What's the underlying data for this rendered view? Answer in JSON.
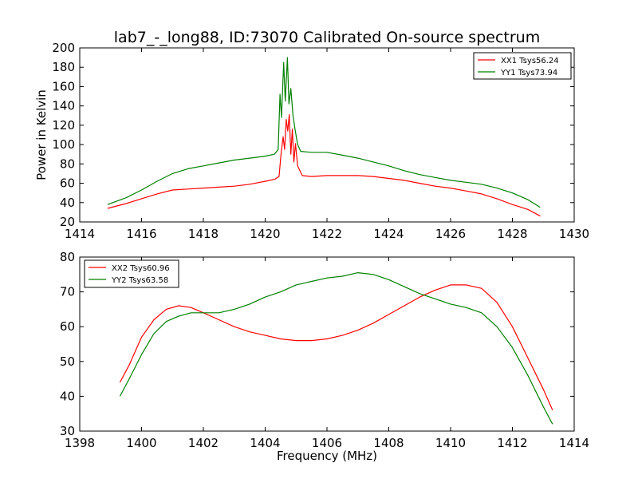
{
  "figure": {
    "title": "lab7_-_long88, ID:73070 Calibrated On-source spectrum",
    "ylabel": "Power in Kelvin",
    "xlabel": "Frequency (MHz)"
  },
  "chart_data": [
    {
      "type": "line",
      "xlim": [
        1414,
        1430
      ],
      "ylim": [
        20,
        200
      ],
      "xticks": [
        1414,
        1416,
        1418,
        1420,
        1422,
        1424,
        1426,
        1428,
        1430
      ],
      "yticks": [
        20,
        40,
        60,
        80,
        100,
        120,
        140,
        160,
        180,
        200
      ],
      "legend_position": "top-right",
      "series": [
        {
          "name": "XX1 Tsys56.24",
          "color": "#ff0000",
          "points": [
            [
              1414.9,
              34
            ],
            [
              1415.5,
              39
            ],
            [
              1416,
              44
            ],
            [
              1416.5,
              49
            ],
            [
              1417,
              53
            ],
            [
              1417.5,
              54
            ],
            [
              1418,
              55
            ],
            [
              1418.5,
              56
            ],
            [
              1419,
              57
            ],
            [
              1419.5,
              59
            ],
            [
              1420,
              62
            ],
            [
              1420.3,
              64
            ],
            [
              1420.45,
              67
            ],
            [
              1420.52,
              92
            ],
            [
              1420.58,
              108
            ],
            [
              1420.63,
              95
            ],
            [
              1420.68,
              126
            ],
            [
              1420.73,
              114
            ],
            [
              1420.78,
              131
            ],
            [
              1420.83,
              90
            ],
            [
              1420.88,
              116
            ],
            [
              1420.93,
              82
            ],
            [
              1420.98,
              101
            ],
            [
              1421.05,
              78
            ],
            [
              1421.2,
              68
            ],
            [
              1421.5,
              67
            ],
            [
              1422,
              68
            ],
            [
              1422.5,
              68
            ],
            [
              1423,
              68
            ],
            [
              1423.5,
              67
            ],
            [
              1424,
              65
            ],
            [
              1424.5,
              63
            ],
            [
              1425,
              60
            ],
            [
              1425.5,
              57
            ],
            [
              1426,
              55
            ],
            [
              1426.5,
              52
            ],
            [
              1427,
              49
            ],
            [
              1427.5,
              44
            ],
            [
              1428,
              38
            ],
            [
              1428.5,
              33
            ],
            [
              1428.9,
              26
            ]
          ]
        },
        {
          "name": "YY1 Tsys73.94",
          "color": "#008000",
          "points": [
            [
              1414.9,
              38
            ],
            [
              1415.5,
              45
            ],
            [
              1416,
              53
            ],
            [
              1416.5,
              62
            ],
            [
              1417,
              70
            ],
            [
              1417.5,
              75
            ],
            [
              1418,
              78
            ],
            [
              1418.5,
              81
            ],
            [
              1419,
              84
            ],
            [
              1419.5,
              86
            ],
            [
              1420,
              88
            ],
            [
              1420.3,
              90
            ],
            [
              1420.42,
              95
            ],
            [
              1420.48,
              152
            ],
            [
              1420.53,
              128
            ],
            [
              1420.6,
              185
            ],
            [
              1420.65,
              145
            ],
            [
              1420.72,
              190
            ],
            [
              1420.77,
              142
            ],
            [
              1420.83,
              158
            ],
            [
              1420.9,
              130
            ],
            [
              1420.97,
              115
            ],
            [
              1421.05,
              100
            ],
            [
              1421.15,
              93
            ],
            [
              1421.5,
              92
            ],
            [
              1422,
              92
            ],
            [
              1422.5,
              89
            ],
            [
              1423,
              86
            ],
            [
              1423.5,
              82
            ],
            [
              1424,
              78
            ],
            [
              1424.5,
              73
            ],
            [
              1425,
              69
            ],
            [
              1425.5,
              66
            ],
            [
              1426,
              63
            ],
            [
              1426.5,
              61
            ],
            [
              1427,
              59
            ],
            [
              1427.5,
              55
            ],
            [
              1428,
              50
            ],
            [
              1428.5,
              43
            ],
            [
              1428.9,
              35
            ]
          ]
        }
      ]
    },
    {
      "type": "line",
      "xlim": [
        1398,
        1414
      ],
      "ylim": [
        30,
        80
      ],
      "xticks": [
        1398,
        1400,
        1402,
        1404,
        1406,
        1408,
        1410,
        1412,
        1414
      ],
      "yticks": [
        30,
        40,
        50,
        60,
        70,
        80
      ],
      "legend_position": "top-left",
      "series": [
        {
          "name": "XX2 Tsys60.96",
          "color": "#ff0000",
          "points": [
            [
              1399.3,
              44
            ],
            [
              1399.6,
              49
            ],
            [
              1400,
              57
            ],
            [
              1400.4,
              62
            ],
            [
              1400.8,
              65
            ],
            [
              1401.2,
              66
            ],
            [
              1401.6,
              65.5
            ],
            [
              1402,
              64
            ],
            [
              1402.5,
              62
            ],
            [
              1403,
              60
            ],
            [
              1403.5,
              58.5
            ],
            [
              1404,
              57.5
            ],
            [
              1404.5,
              56.5
            ],
            [
              1405,
              56
            ],
            [
              1405.5,
              56
            ],
            [
              1406,
              56.5
            ],
            [
              1406.5,
              57.5
            ],
            [
              1407,
              59
            ],
            [
              1407.5,
              61
            ],
            [
              1408,
              63.5
            ],
            [
              1408.5,
              66
            ],
            [
              1409,
              68.5
            ],
            [
              1409.5,
              70.5
            ],
            [
              1410,
              72
            ],
            [
              1410.5,
              72
            ],
            [
              1411,
              71
            ],
            [
              1411.5,
              67
            ],
            [
              1412,
              60
            ],
            [
              1412.5,
              51
            ],
            [
              1413,
              42
            ],
            [
              1413.3,
              36
            ]
          ]
        },
        {
          "name": "YY2 Tsys63.58",
          "color": "#008000",
          "points": [
            [
              1399.3,
              40
            ],
            [
              1399.6,
              45
            ],
            [
              1400,
              52
            ],
            [
              1400.4,
              58
            ],
            [
              1400.8,
              61.5
            ],
            [
              1401.2,
              63
            ],
            [
              1401.6,
              64
            ],
            [
              1402,
              64
            ],
            [
              1402.5,
              64
            ],
            [
              1403,
              65
            ],
            [
              1403.5,
              66.5
            ],
            [
              1404,
              68.5
            ],
            [
              1404.5,
              70
            ],
            [
              1405,
              72
            ],
            [
              1405.5,
              73
            ],
            [
              1406,
              74
            ],
            [
              1406.5,
              74.5
            ],
            [
              1407,
              75.5
            ],
            [
              1407.5,
              75
            ],
            [
              1408,
              73.5
            ],
            [
              1408.5,
              71.5
            ],
            [
              1409,
              69.5
            ],
            [
              1409.5,
              68
            ],
            [
              1410,
              66.5
            ],
            [
              1410.5,
              65.5
            ],
            [
              1411,
              64
            ],
            [
              1411.5,
              60
            ],
            [
              1412,
              54
            ],
            [
              1412.5,
              46
            ],
            [
              1413,
              37
            ],
            [
              1413.3,
              32
            ]
          ]
        }
      ]
    }
  ]
}
